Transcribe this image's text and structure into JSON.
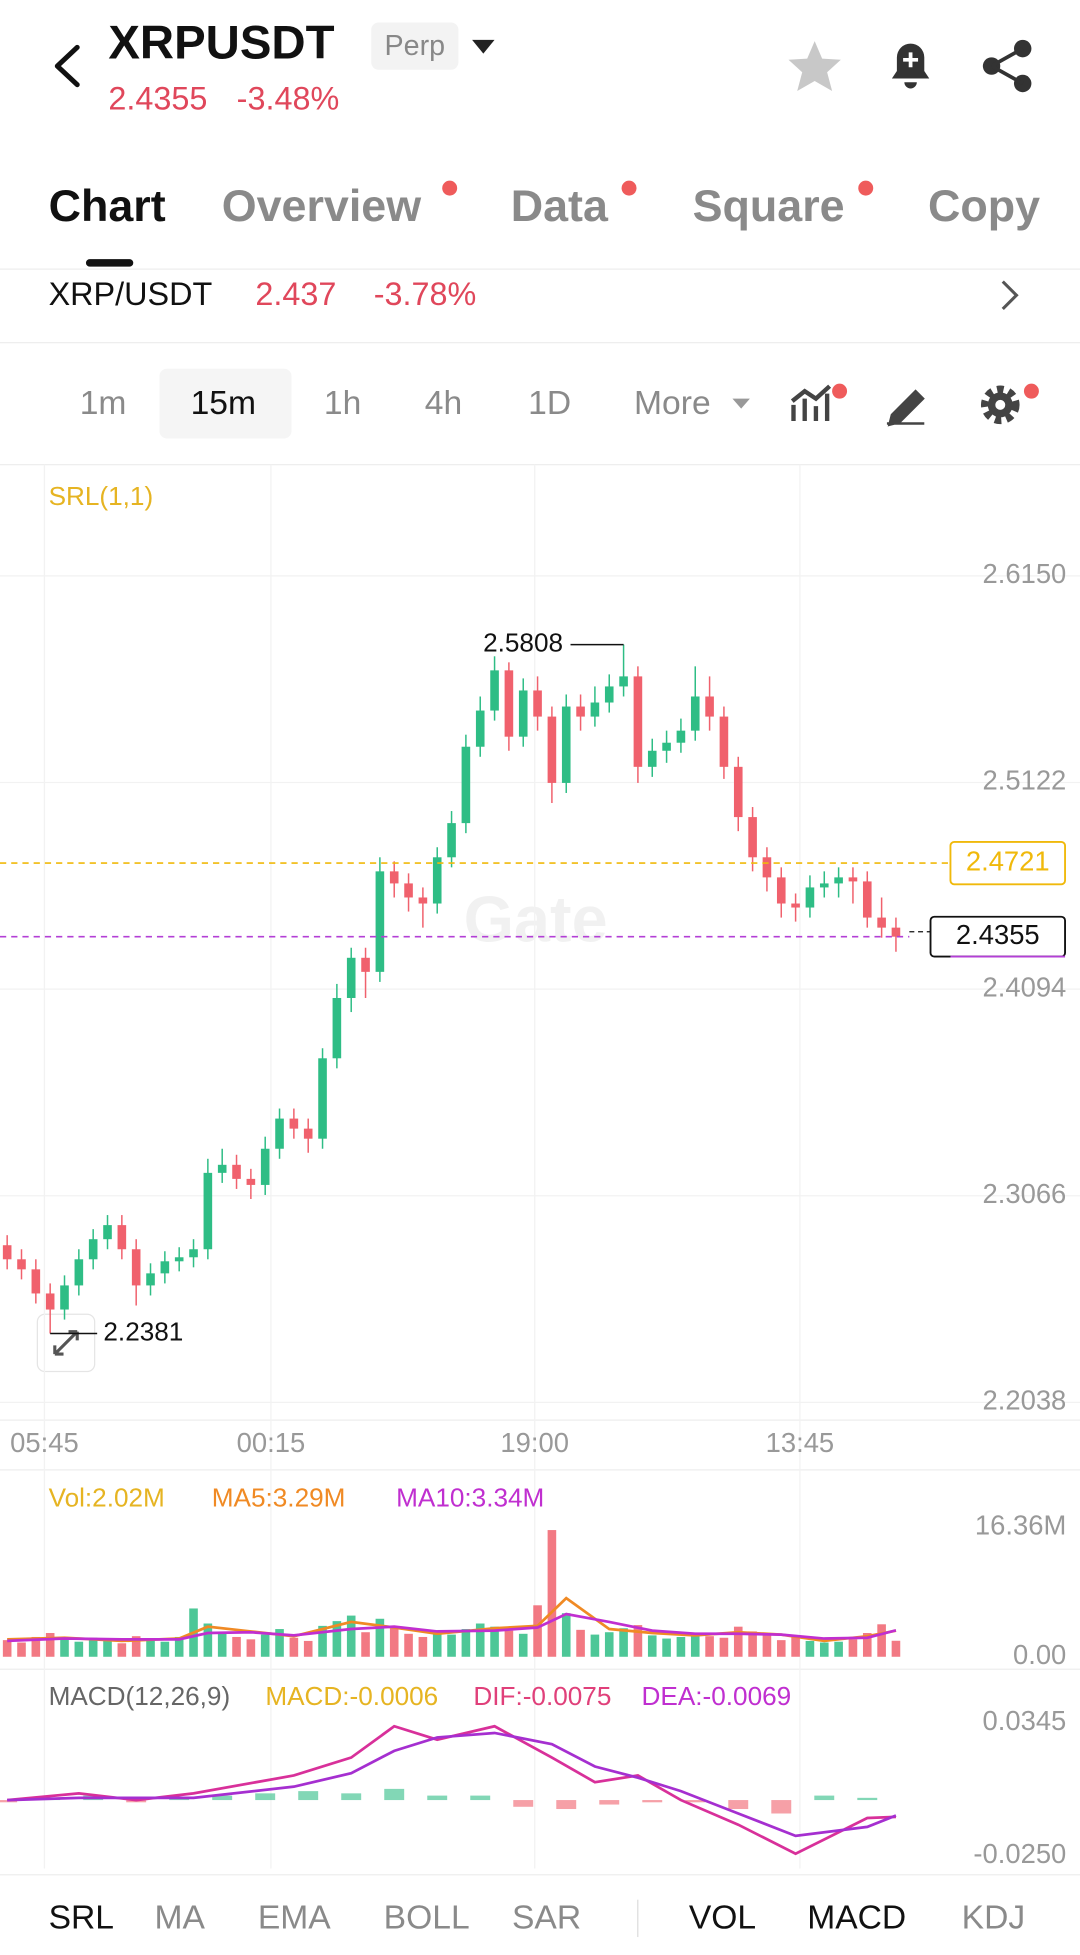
{
  "header": {
    "symbol": "XRPUSDT",
    "badge": "Perp",
    "price": "2.4355",
    "change": "-3.48%"
  },
  "tabs": [
    "Chart",
    "Overview",
    "Data",
    "Square",
    "Copy"
  ],
  "spot": {
    "pair": "XRP/USDT",
    "price": "2.437",
    "change": "-3.78%"
  },
  "intervals": [
    "1m",
    "15m",
    "1h",
    "4h",
    "1D",
    "More"
  ],
  "price_chart": {
    "type": "candlestick",
    "indicator_label": "SRL(1,1)",
    "watermark": "Gate",
    "up_color": "#2ebd85",
    "down_color": "#f0616d",
    "ylim": [
      2.195,
      2.666
    ],
    "yticks": [
      {
        "value": 2.615,
        "label": "2.6150"
      },
      2.5122,
      2.4094,
      2.3066,
      2.2038
    ],
    "xlim": [
      -0.5,
      62.5
    ],
    "xticks": [
      {
        "value": 2.6,
        "label": "05:45"
      },
      {
        "value": 18.4,
        "label": "00:15"
      },
      {
        "value": 36.8,
        "label": "19:00"
      },
      {
        "value": 55.3,
        "label": "13:45"
      }
    ],
    "grid": true,
    "candles": [
      [
        2.282,
        2.287,
        2.27,
        2.275
      ],
      [
        2.275,
        2.28,
        2.265,
        2.27
      ],
      [
        2.27,
        2.275,
        2.253,
        2.258
      ],
      [
        2.258,
        2.263,
        2.2381,
        2.25
      ],
      [
        2.25,
        2.267,
        2.245,
        2.262
      ],
      [
        2.262,
        2.28,
        2.257,
        2.275
      ],
      [
        2.275,
        2.29,
        2.27,
        2.285
      ],
      [
        2.285,
        2.297,
        2.28,
        2.292
      ],
      [
        2.292,
        2.297,
        2.275,
        2.28
      ],
      [
        2.28,
        2.285,
        2.252,
        2.262
      ],
      [
        2.262,
        2.273,
        2.257,
        2.268
      ],
      [
        2.268,
        2.279,
        2.263,
        2.274
      ],
      [
        2.274,
        2.281,
        2.269,
        2.276
      ],
      [
        2.276,
        2.285,
        2.271,
        2.28
      ],
      [
        2.28,
        2.325,
        2.275,
        2.318
      ],
      [
        2.318,
        2.33,
        2.313,
        2.322
      ],
      [
        2.322,
        2.327,
        2.31,
        2.315
      ],
      [
        2.315,
        2.32,
        2.305,
        2.312
      ],
      [
        2.312,
        2.336,
        2.307,
        2.33
      ],
      [
        2.33,
        2.35,
        2.325,
        2.345
      ],
      [
        2.345,
        2.35,
        2.335,
        2.34
      ],
      [
        2.34,
        2.345,
        2.328,
        2.335
      ],
      [
        2.335,
        2.38,
        2.33,
        2.375
      ],
      [
        2.375,
        2.412,
        2.37,
        2.405
      ],
      [
        2.405,
        2.43,
        2.398,
        2.425
      ],
      [
        2.425,
        2.43,
        2.405,
        2.418
      ],
      [
        2.418,
        2.475,
        2.413,
        2.468
      ],
      [
        2.468,
        2.473,
        2.455,
        2.462
      ],
      [
        2.462,
        2.467,
        2.448,
        2.455
      ],
      [
        2.455,
        2.46,
        2.44,
        2.452
      ],
      [
        2.452,
        2.48,
        2.447,
        2.475
      ],
      [
        2.475,
        2.498,
        2.47,
        2.492
      ],
      [
        2.492,
        2.536,
        2.487,
        2.53
      ],
      [
        2.53,
        2.555,
        2.525,
        2.548
      ],
      [
        2.548,
        2.575,
        2.543,
        2.568
      ],
      [
        2.568,
        2.572,
        2.528,
        2.535
      ],
      [
        2.535,
        2.564,
        2.53,
        2.558
      ],
      [
        2.558,
        2.565,
        2.538,
        2.545
      ],
      [
        2.545,
        2.55,
        2.502,
        2.512
      ],
      [
        2.512,
        2.556,
        2.507,
        2.55
      ],
      [
        2.55,
        2.556,
        2.538,
        2.545
      ],
      [
        2.545,
        2.56,
        2.54,
        2.552
      ],
      [
        2.552,
        2.566,
        2.547,
        2.56
      ],
      [
        2.56,
        2.5808,
        2.555,
        2.565
      ],
      [
        2.565,
        2.57,
        2.512,
        2.52
      ],
      [
        2.52,
        2.534,
        2.515,
        2.528
      ],
      [
        2.528,
        2.538,
        2.522,
        2.532
      ],
      [
        2.532,
        2.544,
        2.527,
        2.538
      ],
      [
        2.538,
        2.57,
        2.533,
        2.555
      ],
      [
        2.555,
        2.565,
        2.538,
        2.545
      ],
      [
        2.545,
        2.55,
        2.514,
        2.52
      ],
      [
        2.52,
        2.525,
        2.488,
        2.495
      ],
      [
        2.495,
        2.5,
        2.468,
        2.475
      ],
      [
        2.475,
        2.48,
        2.458,
        2.465
      ],
      [
        2.465,
        2.47,
        2.445,
        2.452
      ],
      [
        2.452,
        2.457,
        2.443,
        2.45
      ],
      [
        2.45,
        2.466,
        2.445,
        2.46
      ],
      [
        2.46,
        2.468,
        2.455,
        2.462
      ],
      [
        2.462,
        2.47,
        2.455,
        2.465
      ],
      [
        2.465,
        2.47,
        2.452,
        2.463
      ],
      [
        2.463,
        2.468,
        2.44,
        2.445
      ],
      [
        2.445,
        2.455,
        2.435,
        2.44
      ],
      [
        2.44,
        2.445,
        2.428,
        2.4355
      ]
    ],
    "high_marker": {
      "x": 43,
      "value": 2.5808
    },
    "low_marker": {
      "x": 3,
      "value": 2.2381
    },
    "srl_line": {
      "value": 2.4721,
      "color": "#f0b90b"
    },
    "last_price": {
      "value": 2.4355,
      "color": "#b33fd6"
    }
  },
  "volume_chart": {
    "type": "bar",
    "legend": [
      {
        "text": "Vol:2.02M",
        "color": "#e6b422"
      },
      {
        "text": "MA5:3.29M",
        "color": "#f08a24"
      },
      {
        "text": "MA10:3.34M",
        "color": "#c02fd0"
      }
    ],
    "ylim": [
      0,
      16.36
    ],
    "yticks": [
      {
        "value": 16.36,
        "label": "16.36M"
      },
      {
        "value": 0,
        "label": "0.00"
      }
    ],
    "values": [
      2.1,
      1.8,
      2.5,
      3.0,
      2.2,
      1.9,
      2.4,
      2.0,
      1.7,
      2.6,
      2.3,
      1.9,
      2.5,
      6.1,
      4.2,
      3.0,
      2.5,
      2.2,
      2.8,
      3.5,
      2.4,
      2.0,
      3.9,
      4.5,
      5.2,
      3.1,
      4.8,
      3.6,
      2.9,
      2.5,
      3.2,
      2.8,
      3.5,
      4.2,
      3.8,
      3.3,
      2.9,
      6.5,
      16.0,
      5.5,
      3.4,
      2.8,
      3.1,
      3.6,
      4.0,
      2.7,
      2.3,
      2.5,
      3.0,
      2.6,
      2.4,
      3.8,
      3.2,
      2.9,
      2.1,
      2.5,
      2.0,
      1.8,
      1.9,
      2.2,
      3.0,
      4.1,
      2.02
    ],
    "ma5": {
      "color": "#f08a24",
      "x": [
        0,
        4,
        8,
        12,
        14,
        17,
        20,
        24,
        27,
        30,
        34,
        37,
        39,
        42,
        45,
        48,
        51,
        54,
        57,
        60,
        62
      ],
      "values": [
        2.2,
        2.4,
        2.0,
        2.3,
        3.8,
        3.2,
        2.6,
        4.4,
        3.7,
        2.9,
        3.6,
        3.9,
        7.4,
        3.5,
        3.0,
        2.7,
        3.1,
        2.8,
        2.0,
        2.6,
        3.29
      ]
    },
    "ma10": {
      "color": "#c02fd0",
      "x": [
        0,
        4,
        8,
        12,
        14,
        17,
        20,
        24,
        27,
        30,
        34,
        37,
        39,
        42,
        45,
        48,
        51,
        54,
        57,
        60,
        62
      ],
      "values": [
        2.0,
        2.3,
        2.2,
        2.2,
        3.0,
        3.1,
        2.7,
        3.5,
        3.8,
        3.2,
        3.3,
        3.7,
        5.4,
        4.4,
        3.3,
        2.9,
        2.9,
        2.8,
        2.3,
        2.4,
        3.34
      ]
    }
  },
  "macd_chart": {
    "type": "macd",
    "title": "MACD(12,26,9)",
    "legend": [
      {
        "text": "MACD:-0.0006",
        "color": "#e6b422"
      },
      {
        "text": "DIF:-0.0075",
        "color": "#e0407a"
      },
      {
        "text": "DEA:-0.0069",
        "color": "#c02fd0"
      }
    ],
    "ylim": [
      -0.0306,
      0.039
    ],
    "yticks": [
      0.0345,
      {
        "value": -0.025,
        "label": "-0.0250"
      }
    ],
    "dif": {
      "color": "#d8309a",
      "x": [
        0,
        5,
        9,
        13,
        20,
        24,
        27,
        30,
        34,
        38,
        41,
        44,
        47,
        51,
        55,
        60,
        62
      ],
      "values": [
        0,
        0.003,
        0,
        0.003,
        0.011,
        0.019,
        0.033,
        0.027,
        0.033,
        0.019,
        0.008,
        0.011,
        0,
        -0.011,
        -0.024,
        -0.008,
        -0.0075
      ]
    },
    "dea": {
      "color": "#a52fd0",
      "x": [
        0,
        5,
        9,
        13,
        20,
        24,
        27,
        30,
        34,
        38,
        41,
        44,
        47,
        51,
        55,
        60,
        62
      ],
      "values": [
        0,
        0.001,
        0.001,
        0.001,
        0.006,
        0.012,
        0.022,
        0.028,
        0.03,
        0.025,
        0.015,
        0.01,
        0.004,
        -0.006,
        -0.016,
        -0.012,
        -0.0069
      ]
    },
    "histogram": {
      "x": [
        0,
        3,
        6,
        9,
        12,
        15,
        18,
        21,
        24,
        27,
        30,
        33,
        36,
        39,
        42,
        45,
        48,
        51,
        54,
        57,
        60
      ],
      "values": [
        -0.001,
        0.001,
        0.002,
        -0.001,
        0.001,
        0.002,
        0.003,
        0.004,
        0.003,
        0.005,
        0.002,
        0.002,
        -0.003,
        -0.004,
        -0.002,
        -0.001,
        -0.001,
        -0.004,
        -0.006,
        0.002,
        0.001
      ]
    }
  },
  "bottom_tabs": [
    "SRL",
    "MA",
    "EMA",
    "BOLL",
    "SAR",
    "VOL",
    "MACD",
    "KDJ"
  ]
}
